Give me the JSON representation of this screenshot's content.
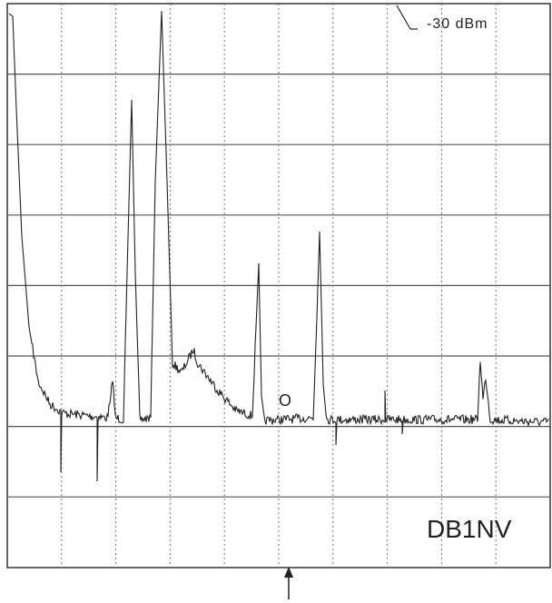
{
  "reference_label": "-30 dBm",
  "marker_label": "O",
  "callsign": "DB1NV"
}
